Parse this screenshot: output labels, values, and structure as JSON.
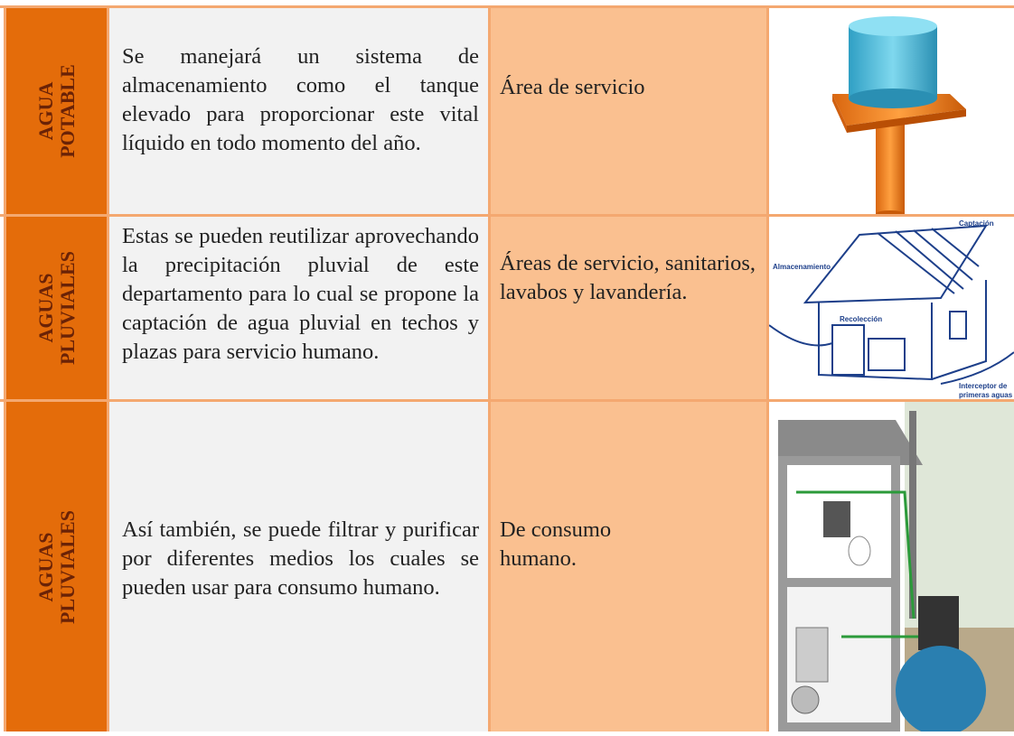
{
  "table": {
    "rows": [
      {
        "label": [
          "AGUA",
          "POTABLE"
        ],
        "description": "Se manejará un sistema de almacenamiento como el tanque elevado para proporcionar este vital líquido en todo momento del año.",
        "use": "Área de servicio"
      },
      {
        "label": [
          "AGUAS",
          "PLUVIALES"
        ],
        "description": "Estas se pueden reutilizar aprovechando la precipitación pluvial de este departamento para lo cual se propone la captación de agua pluvial en techos y plazas para servicio humano.",
        "use": "Áreas de servicio, sanitarios, lavabos y lavandería.",
        "image_labels": [
          "Captación",
          "Almacenamiento",
          "Recolección",
          "Interceptor de",
          "primeras aguas"
        ]
      },
      {
        "label": [
          "AGUAS",
          "PLUVIALES"
        ],
        "description": "Así también, se puede filtrar y purificar por diferentes medios los cuales se pueden usar para consumo humano.",
        "use": "De consumo humano."
      }
    ]
  }
}
